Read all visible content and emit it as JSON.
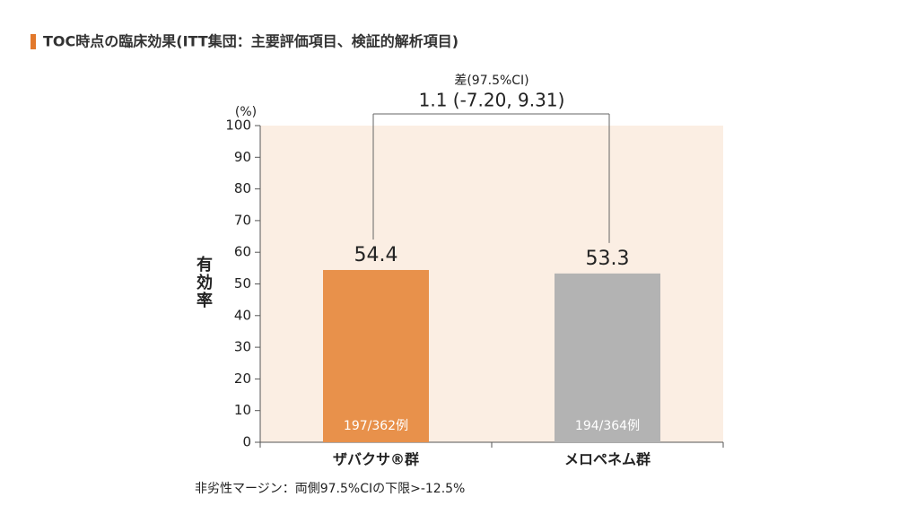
{
  "chart_data": {
    "type": "bar",
    "title": "TOC時点の臨床効果(ITT集団：主要評価項目、検証的解析項目)",
    "y_label": "有効率",
    "y_unit": "(%)",
    "categories": [
      "ザバクサ®群",
      "メロペネム群"
    ],
    "values": [
      54.4,
      53.3
    ],
    "colors": [
      "#e8914b",
      "#b3b3b3"
    ],
    "annotations": [
      "197/362例",
      "194/364例"
    ],
    "comparison": {
      "label": "差(97.5%CI)",
      "text": "1.1 (-7.20, 9.31)"
    },
    "ylim": [
      0,
      100
    ],
    "yticks": [
      0,
      10,
      20,
      30,
      40,
      50,
      60,
      70,
      80,
      90,
      100
    ],
    "plot_background": "#fbeee3",
    "footnote": "非劣性マージン：両側97.5%CIの下限>-12.5%"
  }
}
